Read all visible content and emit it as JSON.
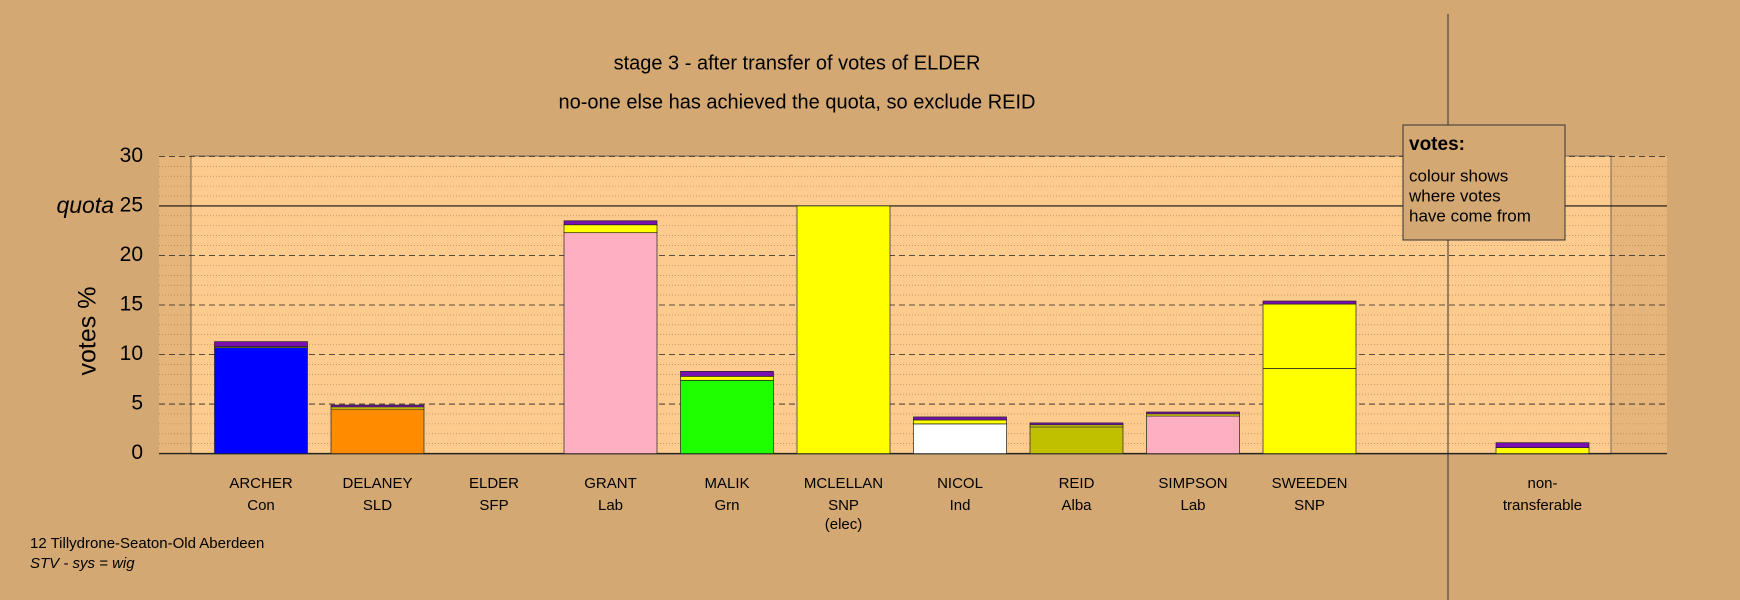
{
  "chart_data": {
    "type": "stacked-bar",
    "title": "stage 3 - after transfer of votes of ELDER",
    "subtitle": "no-one else has achieved the quota, so exclude REID",
    "y_label": "votes %",
    "quota_label": "quota",
    "quota": 25,
    "categories": [
      "ARCHER",
      "DELANEY",
      "ELDER",
      "GRANT",
      "MALIK",
      "MCLELLAN",
      "NICOL",
      "REID",
      "SIMPSON",
      "SWEEDEN",
      "non-"
    ],
    "sublabels": [
      "Con",
      "SLD",
      "SFP",
      "Lab",
      "Grn",
      "SNP",
      "Ind",
      "Alba",
      "Lab",
      "SNP",
      "transferable"
    ],
    "notes": [
      null,
      null,
      null,
      null,
      null,
      "(elec)",
      null,
      null,
      null,
      null,
      null
    ],
    "series": [
      {
        "colors": [
          "#0000ff",
          "#ff8c00",
          "#8000c0",
          "#ffb0c0",
          "#20ff00",
          "#ffff00",
          "#ffffff",
          "#c0c000",
          "#ffb0c0",
          "#ffff00",
          "#ffffff"
        ],
        "values": [
          10.7,
          4.5,
          0,
          22.3,
          7.4,
          25,
          3.0,
          2.7,
          3.8,
          8.6,
          0
        ]
      },
      {
        "color": "#ffff00",
        "values": [
          0.1,
          0.2,
          0,
          0.8,
          0.4,
          0,
          0.4,
          0.2,
          0.2,
          6.5,
          0.6
        ]
      },
      {
        "color": "#7a10b0",
        "values": [
          0.5,
          0.2,
          0,
          0.4,
          0.5,
          0,
          0.3,
          0.2,
          0.2,
          0.3,
          0.5
        ]
      }
    ],
    "ylim": [
      0,
      30
    ],
    "yticks": [
      0,
      5,
      10,
      15,
      20,
      25,
      30
    ],
    "legend": {
      "title": "votes:",
      "lines": [
        "colour shows",
        "where votes",
        "have come from"
      ]
    },
    "footer": [
      "12 Tillydrone-Seaton-Old Aberdeen",
      "STV - sys = wig"
    ]
  }
}
